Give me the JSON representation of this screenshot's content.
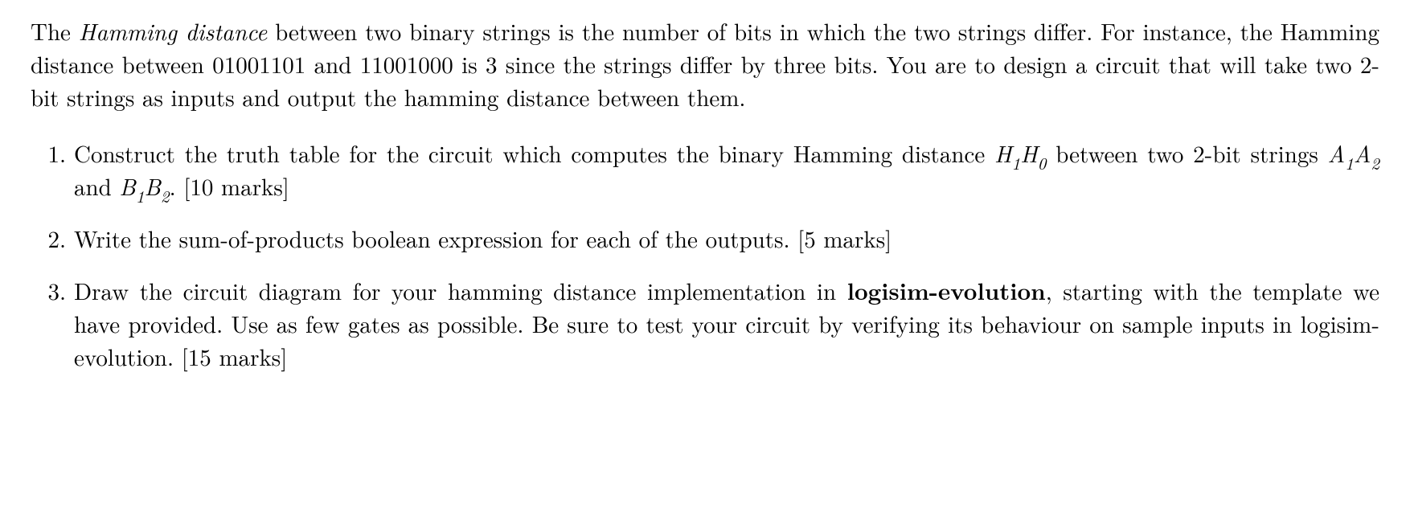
{
  "intro": {
    "term": "Hamming distance",
    "p1a": "The ",
    "p1b": " between two binary strings is the number of bits in which the two strings differ. For instance, the Hamming distance between 01001101 and 11001000 is 3 since the strings differ by three bits. You are to design a circuit that will take two 2-bit strings as inputs and output the hamming distance between them."
  },
  "items": {
    "q1": {
      "num": "1.",
      "a": "Construct the truth table for the circuit which computes the binary Hamming distance ",
      "H1": "H",
      "H1s": "1",
      "H0": "H",
      "H0s": "0",
      "b": " between two 2-bit strings ",
      "A1": "A",
      "A1s": "1",
      "A2": "A",
      "A2s": "2",
      "and1": " and ",
      "B1": "B",
      "B1s": "1",
      "B2": "B",
      "B2s": "2",
      "c": ". [10 marks]"
    },
    "q2": {
      "num": "2.",
      "text": "Write the sum-of-products boolean expression for each of the outputs. [5 marks]"
    },
    "q3": {
      "num": "3.",
      "a": "Draw the circuit diagram for your hamming distance implementation in ",
      "tool": "logisim-evolution",
      "b": ", starting with the template we have provided. Use as few gates as possible. Be sure to test your circuit by verifying its behaviour on sample inputs in logisim-evolution. [15 marks]"
    }
  }
}
